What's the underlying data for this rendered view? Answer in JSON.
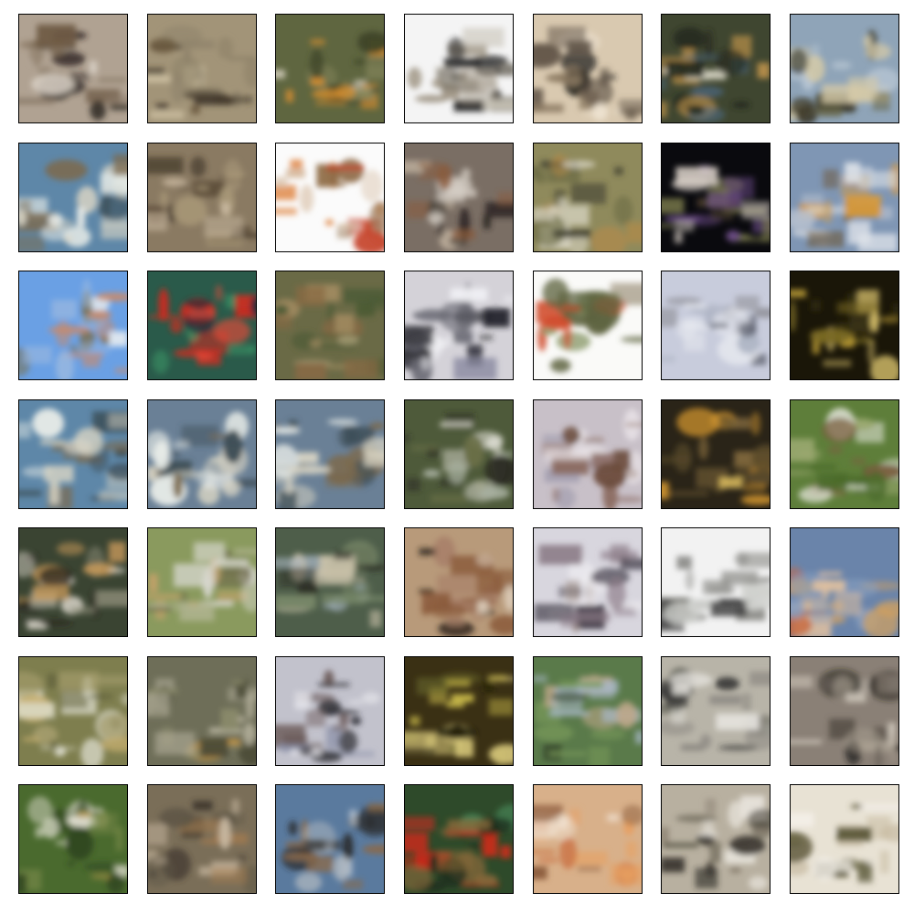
{
  "grid": {
    "rows": 7,
    "cols": 7,
    "border_color": "#000000",
    "background": "#ffffff"
  },
  "samples": [
    {
      "bg": "#b0a292",
      "accents": [
        "#2a2420",
        "#d8cfc4",
        "#6e5a44",
        "#8a7a68"
      ]
    },
    {
      "bg": "#a29478",
      "accents": [
        "#3a3026",
        "#d4c7a8",
        "#6b5a40",
        "#8f836a"
      ]
    },
    {
      "bg": "#5f6640",
      "accents": [
        "#d98f2e",
        "#d8d2c0",
        "#3e4428",
        "#8a8a5e"
      ]
    },
    {
      "bg": "#f4f4f4",
      "accents": [
        "#2a2a2a",
        "#6f6a60",
        "#c9c4b8",
        "#9a8f7e"
      ]
    },
    {
      "bg": "#d9c9b0",
      "accents": [
        "#1f1c1a",
        "#8c7a62",
        "#efe4d2",
        "#5e5246"
      ]
    },
    {
      "bg": "#3f4630",
      "accents": [
        "#c99a4e",
        "#e0dccc",
        "#22281c",
        "#4d6a86"
      ]
    },
    {
      "bg": "#8fa4b8",
      "accents": [
        "#6b6a4e",
        "#d4c9a8",
        "#3d3a2a",
        "#b8c6d4"
      ]
    },
    {
      "bg": "#5e87a8",
      "accents": [
        "#3a4a52",
        "#d8d4c4",
        "#7c6a4e",
        "#e8ece8"
      ]
    },
    {
      "bg": "#8a7a62",
      "accents": [
        "#3e3226",
        "#c9b8a0",
        "#5e4e3a",
        "#a89878"
      ]
    },
    {
      "bg": "#fbfbfb",
      "accents": [
        "#c23a20",
        "#e08a4a",
        "#8e6a46",
        "#d8c0a8"
      ]
    },
    {
      "bg": "#7a6e64",
      "accents": [
        "#2c2622",
        "#d6cfc6",
        "#8a5a3a",
        "#b8aa98"
      ]
    },
    {
      "bg": "#8f8a5c",
      "accents": [
        "#3a3a2c",
        "#dcd8c8",
        "#b08a4a",
        "#6a6a44"
      ]
    },
    {
      "bg": "#0a0a0e",
      "accents": [
        "#6a4a86",
        "#d8cfc6",
        "#7a7a4c",
        "#4a3c2c"
      ]
    },
    {
      "bg": "#7f96b4",
      "accents": [
        "#d99a3a",
        "#b8c2d0",
        "#6e5a3e",
        "#e0e4ea"
      ]
    },
    {
      "bg": "#6aa0e4",
      "accents": [
        "#c98a6a",
        "#7a6e4a",
        "#e0e8f0",
        "#9ab8e0"
      ]
    },
    {
      "bg": "#2a5a4a",
      "accents": [
        "#d02a1e",
        "#3ca06a",
        "#e04a3a",
        "#1a2a3a"
      ]
    },
    {
      "bg": "#6a6a46",
      "accents": [
        "#8a6a44",
        "#c8b890",
        "#4a5a34",
        "#a08a60"
      ]
    },
    {
      "bg": "#d4d2d8",
      "accents": [
        "#24242a",
        "#8a8aa0",
        "#f0f0f4",
        "#6a6a74"
      ]
    },
    {
      "bg": "#fafaf8",
      "accents": [
        "#5e6440",
        "#8a9a6a",
        "#b8b0a0",
        "#d04a2a"
      ]
    },
    {
      "bg": "#c8ccdc",
      "accents": [
        "#8a8a90",
        "#e8eaf0",
        "#5e6270",
        "#aeb4c4"
      ]
    },
    {
      "bg": "#1a1608",
      "accents": [
        "#c9a83a",
        "#7a6a24",
        "#e0c870",
        "#3a3214"
      ]
    },
    {
      "bg": "#5e87a8",
      "accents": [
        "#3a4a52",
        "#d8d4c4",
        "#7c6a4e",
        "#e8ece8"
      ]
    },
    {
      "bg": "#6a8096",
      "accents": [
        "#3a4a52",
        "#d8d4c4",
        "#7c6a4e",
        "#e8ece8"
      ]
    },
    {
      "bg": "#6a8096",
      "accents": [
        "#3a4a52",
        "#d8d4c4",
        "#7c6a4e",
        "#e8ece8"
      ]
    },
    {
      "bg": "#4e5a3a",
      "accents": [
        "#eae8e0",
        "#2a2a22",
        "#a8b0a0",
        "#6a7048"
      ]
    },
    {
      "bg": "#c8c0c8",
      "accents": [
        "#6a4a3a",
        "#eae4e8",
        "#8a6a60",
        "#a4a0b0"
      ]
    },
    {
      "bg": "#2a2418",
      "accents": [
        "#e0c060",
        "#8a7040",
        "#d89a30",
        "#5a4a2a"
      ]
    },
    {
      "bg": "#5e7e3a",
      "accents": [
        "#ecece6",
        "#7a5e3e",
        "#4a6a2a",
        "#9aa870"
      ]
    },
    {
      "bg": "#3a4432",
      "accents": [
        "#d8d4c8",
        "#2a241e",
        "#8a8a76",
        "#c89a5a"
      ]
    },
    {
      "bg": "#8a9a5e",
      "accents": [
        "#d8d8d0",
        "#6e6a4a",
        "#b0b490",
        "#c8a26a"
      ]
    },
    {
      "bg": "#4e5e4a",
      "accents": [
        "#a6b4c0",
        "#2a2a22",
        "#7a8a6a",
        "#c8c0a8"
      ]
    },
    {
      "bg": "#b89a7a",
      "accents": [
        "#8a5a3a",
        "#2a221a",
        "#e0d2c0",
        "#a8806a"
      ]
    },
    {
      "bg": "#d8d6de",
      "accents": [
        "#3a3440",
        "#8a7a86",
        "#f0eef2",
        "#9a8a80"
      ]
    },
    {
      "bg": "#f2f2f2",
      "accents": [
        "#3a3a3a",
        "#8a8a86",
        "#cfd0cc",
        "#6a6a64"
      ]
    },
    {
      "bg": "#6a84aa",
      "accents": [
        "#d0a060",
        "#e0c0a0",
        "#8aa0c0",
        "#c86a40"
      ]
    },
    {
      "bg": "#7e7e4e",
      "accents": [
        "#c8b070",
        "#dcdccc",
        "#5a5a36",
        "#a8a070"
      ]
    },
    {
      "bg": "#6e6e58",
      "accents": [
        "#d09a3a",
        "#bdb8a4",
        "#4a4a36",
        "#8a8a6a"
      ]
    },
    {
      "bg": "#c2c2cc",
      "accents": [
        "#2a2a30",
        "#e6e6ec",
        "#6a5a58",
        "#8a90a8"
      ]
    },
    {
      "bg": "#3a3014",
      "accents": [
        "#c8b84a",
        "#6a6a2a",
        "#e0d080",
        "#1e1a0a"
      ]
    },
    {
      "bg": "#5a7a4a",
      "accents": [
        "#a8b8c8",
        "#3a4a2e",
        "#c0a88a",
        "#7a9a5a"
      ]
    },
    {
      "bg": "#b8b4a8",
      "accents": [
        "#2a2a2a",
        "#e6e4de",
        "#6a6a60",
        "#8a8680"
      ]
    },
    {
      "bg": "#8a8076",
      "accents": [
        "#1e1a16",
        "#d0c8bc",
        "#5a524a",
        "#a89e90"
      ]
    },
    {
      "bg": "#4a6a2e",
      "accents": [
        "#ece8dc",
        "#c8a050",
        "#2e4420",
        "#7a8a4a"
      ]
    },
    {
      "bg": "#7a6e58",
      "accents": [
        "#3a3228",
        "#c8b8a0",
        "#a07a50",
        "#5e5646"
      ]
    },
    {
      "bg": "#5a7a9e",
      "accents": [
        "#f0f0f0",
        "#2a2a2a",
        "#8a6a4a",
        "#b0b8c0"
      ]
    },
    {
      "bg": "#2e4a2a",
      "accents": [
        "#d8281a",
        "#4a8a5a",
        "#1a2a1a",
        "#8a6a3a"
      ]
    },
    {
      "bg": "#d8b08a",
      "accents": [
        "#c86a3a",
        "#f0e0d0",
        "#8a5a3a",
        "#e8a060"
      ]
    },
    {
      "bg": "#b8b0a0",
      "accents": [
        "#5e5a4a",
        "#e8e4dc",
        "#2e2a24",
        "#8a8070"
      ]
    },
    {
      "bg": "#e8e2d4",
      "accents": [
        "#6e6a48",
        "#5a5638",
        "#c8bca4",
        "#f4f0ea"
      ]
    }
  ]
}
